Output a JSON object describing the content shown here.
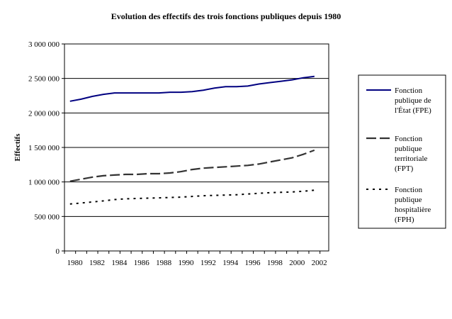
{
  "chart_data": {
    "type": "line",
    "title": "Evolution des effectifs des trois fonctions publiques depuis 1980",
    "xlabel": "",
    "ylabel": "Effectifs",
    "ylim": [
      0,
      3000000
    ],
    "y_ticks": [
      0,
      500000,
      1000000,
      1500000,
      2000000,
      2500000,
      3000000
    ],
    "y_tick_labels": [
      "0",
      "500 000",
      "1 000 000",
      "1 500 000",
      "2 000 000",
      "2 500 000",
      "3 000 000"
    ],
    "x_tick_labels": [
      "1980",
      "1982",
      "1984",
      "1986",
      "1988",
      "1990",
      "1992",
      "1994",
      "1996",
      "1998",
      "2000",
      "2002"
    ],
    "grid": true,
    "legend_position": "right",
    "x": [
      1980,
      1981,
      1982,
      1983,
      1984,
      1985,
      1986,
      1987,
      1988,
      1989,
      1990,
      1991,
      1992,
      1993,
      1994,
      1995,
      1996,
      1997,
      1998,
      1999,
      2000,
      2001,
      2002
    ],
    "series": [
      {
        "name": "Fonction publique de l'État (FPE)",
        "legend_lines": [
          "Fonction",
          "publique de",
          "l'État (FPE)"
        ],
        "color": "#000080",
        "dash": "solid",
        "values": [
          2170000,
          2200000,
          2240000,
          2270000,
          2290000,
          2290000,
          2290000,
          2290000,
          2290000,
          2300000,
          2300000,
          2310000,
          2330000,
          2360000,
          2380000,
          2380000,
          2390000,
          2420000,
          2440000,
          2460000,
          2480000,
          2510000,
          2530000
        ]
      },
      {
        "name": "Fonction publique territoriale (FPT)",
        "legend_lines": [
          "Fonction",
          "publique",
          "territoriale",
          "(FPT)"
        ],
        "color": "#333333",
        "dash": "long-dash",
        "values": [
          1010000,
          1040000,
          1070000,
          1090000,
          1100000,
          1110000,
          1110000,
          1120000,
          1120000,
          1130000,
          1150000,
          1180000,
          1200000,
          1210000,
          1220000,
          1230000,
          1240000,
          1260000,
          1290000,
          1320000,
          1350000,
          1400000,
          1460000
        ]
      },
      {
        "name": "Fonction publique hospitalière (FPH)",
        "legend_lines": [
          "Fonction",
          "publique",
          "hospitalière",
          "(FPH)"
        ],
        "color": "#000000",
        "dash": "dotted",
        "values": [
          680000,
          695000,
          710000,
          725000,
          745000,
          755000,
          760000,
          765000,
          770000,
          775000,
          780000,
          790000,
          800000,
          805000,
          810000,
          815000,
          825000,
          835000,
          845000,
          850000,
          855000,
          865000,
          880000
        ]
      }
    ]
  }
}
